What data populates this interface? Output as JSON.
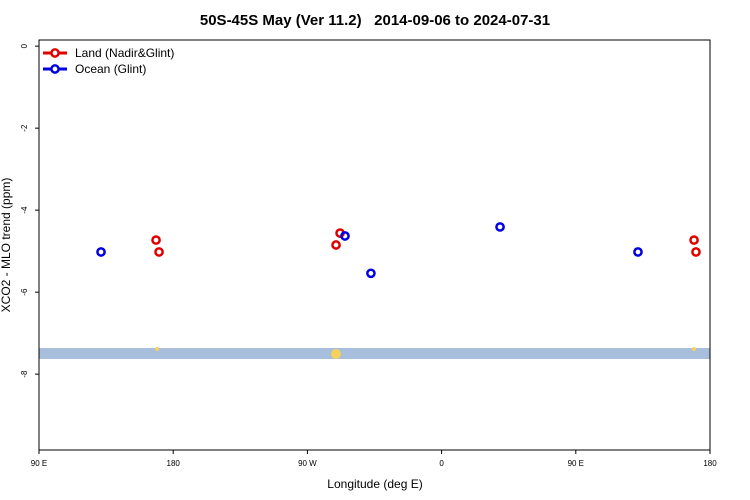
{
  "chart_data": {
    "type": "scatter",
    "title": "50S-45S May (Ver 11.2)   2014-09-06 to 2024-07-31",
    "x_label": "Longitude (deg E)",
    "y_label": "XCO2 - MLO trend (ppm)",
    "xlim": [
      90,
      540
    ],
    "ylim": [
      -9.85,
      0.15
    ],
    "xticks": [
      {
        "value": 90,
        "label": "90 E"
      },
      {
        "value": 180,
        "label": "180"
      },
      {
        "value": 270,
        "label": "90 W"
      },
      {
        "value": 360,
        "label": "0"
      },
      {
        "value": 450,
        "label": "90 E"
      },
      {
        "value": 540,
        "label": "180"
      }
    ],
    "yticks": [
      0,
      -2,
      -4,
      -6,
      -8
    ],
    "legend": "top-left",
    "series": [
      {
        "name": "Land (Nadir&Glint)",
        "color": "#e00000",
        "x": [
          168.5,
          170.5,
          291.9,
          289.2,
          529.3,
          530.6
        ],
        "values": [
          -4.73,
          -5.02,
          -4.56,
          -4.85,
          -4.73,
          -5.02
        ]
      },
      {
        "name": "Ocean (Glint)",
        "color": "#0000e0",
        "x": [
          131.6,
          295.2,
          312.6,
          399.2,
          491.7
        ],
        "values": [
          -5.02,
          -4.63,
          -5.54,
          -4.41,
          -5.02
        ]
      }
    ]
  }
}
